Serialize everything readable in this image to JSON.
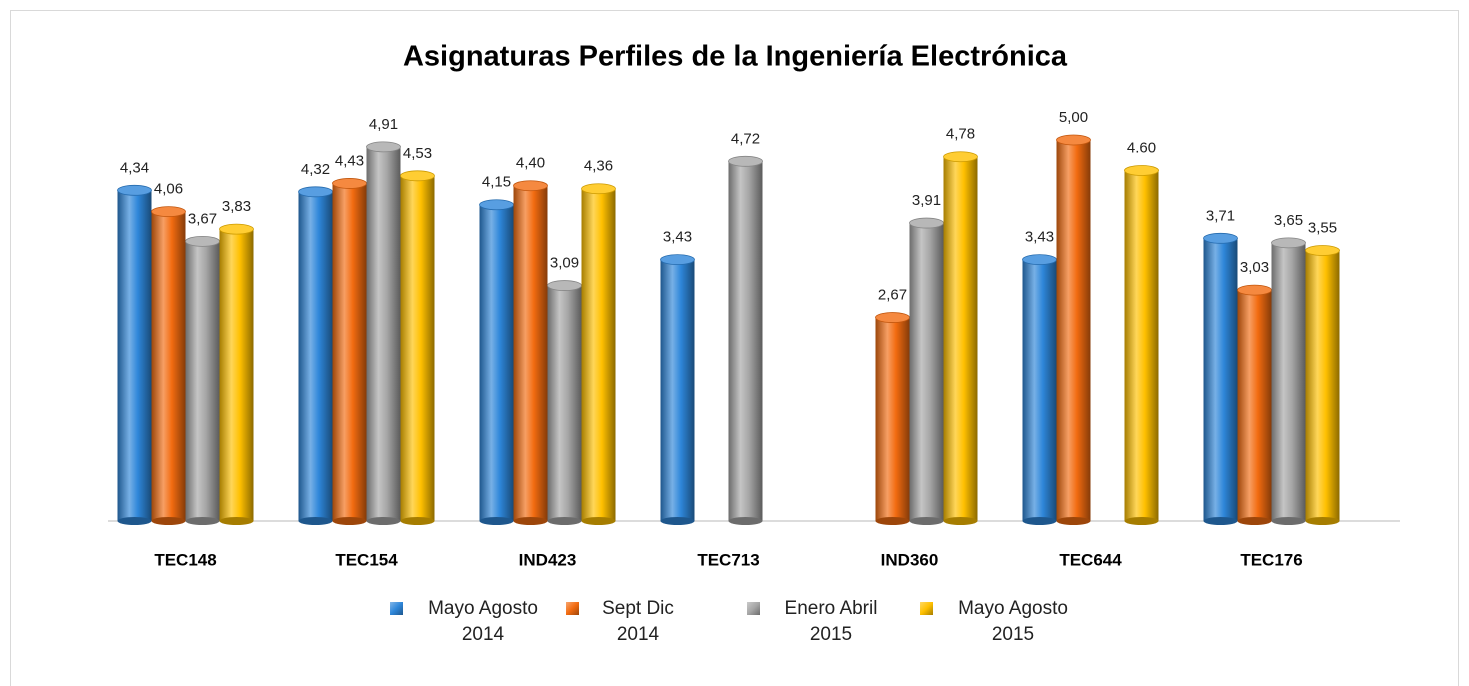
{
  "chart_data": {
    "type": "bar",
    "title": "Asignaturas Perfiles de la Ingeniería Electrónica",
    "categories": [
      "TEC148",
      "TEC154",
      "IND423",
      "TEC713",
      "IND360",
      "TEC644",
      "TEC176"
    ],
    "series": [
      {
        "name": "Mayo Agosto 2014",
        "color": "#2e86d9",
        "values": [
          4.34,
          4.32,
          4.15,
          3.43,
          null,
          3.43,
          3.71
        ],
        "value_labels": [
          "4,34",
          "4,32",
          "4,15",
          "3,43",
          null,
          "3,43",
          "3,71"
        ]
      },
      {
        "name": "Sept Dic 2014",
        "color": "#f26b10",
        "values": [
          4.06,
          4.43,
          4.4,
          null,
          2.67,
          5.0,
          3.03
        ],
        "value_labels": [
          "4,06",
          "4,43",
          "4,40",
          null,
          "2,67",
          "5,00",
          "3,03"
        ]
      },
      {
        "name": "Enero Abril 2015",
        "color": "#a6a6a6",
        "values": [
          3.67,
          4.91,
          3.09,
          4.72,
          3.91,
          null,
          3.65
        ],
        "value_labels": [
          "3,67",
          "4,91",
          "3,09",
          "4,72",
          "3,91",
          null,
          "3,65"
        ]
      },
      {
        "name": "Mayo Agosto 2015",
        "color": "#ffc000",
        "values": [
          3.83,
          4.53,
          4.36,
          null,
          4.78,
          4.6,
          3.55
        ],
        "value_labels": [
          "3,83",
          "4,53",
          "4,36",
          null,
          "4,78",
          "4.60",
          "3,55"
        ]
      }
    ],
    "ylim": [
      0,
      5
    ],
    "legend": "bottom"
  }
}
